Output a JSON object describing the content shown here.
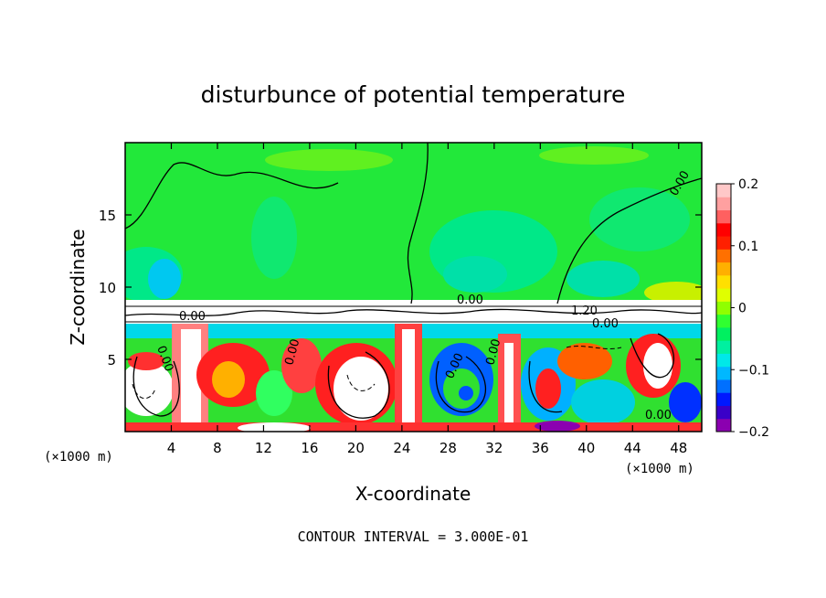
{
  "chart_data": {
    "type": "heatmap",
    "title": "disturbunce of potential temperature",
    "xlabel": "X-coordinate",
    "ylabel": "Z-coordinate",
    "x_unit_label": "(×1000 m)",
    "x_unit_label_right": "(×1000 m)",
    "footer": "CONTOUR INTERVAL = 3.000E-01",
    "xlim": [
      0,
      50
    ],
    "ylim": [
      0,
      20
    ],
    "x_ticks": [
      4,
      8,
      12,
      16,
      20,
      24,
      28,
      32,
      36,
      40,
      44,
      48
    ],
    "y_ticks": [
      5,
      10,
      15
    ],
    "colorbar": {
      "min": -0.2,
      "max": 0.2,
      "tick_labels": [
        "0.2",
        "0.1",
        "0",
        "−0.1",
        "−0.2"
      ],
      "tick_values": [
        0.2,
        0.1,
        0,
        -0.1,
        -0.2
      ],
      "colors": [
        "#8b00b0",
        "#3a00c8",
        "#0018ff",
        "#0070ff",
        "#00b8ff",
        "#00e8e8",
        "#00f0a0",
        "#00f060",
        "#30ff30",
        "#90ff00",
        "#e0ff00",
        "#ffe000",
        "#ffb000",
        "#ff7000",
        "#ff2000",
        "#ff0000",
        "#ff6060",
        "#ffa0a0",
        "#ffc8c8"
      ]
    },
    "contour_labels": [
      "0.00",
      "1.20",
      "0.00",
      "0.00",
      "0.00",
      "0.00",
      "0.00",
      "0.00",
      "0.00",
      "0.00"
    ]
  }
}
